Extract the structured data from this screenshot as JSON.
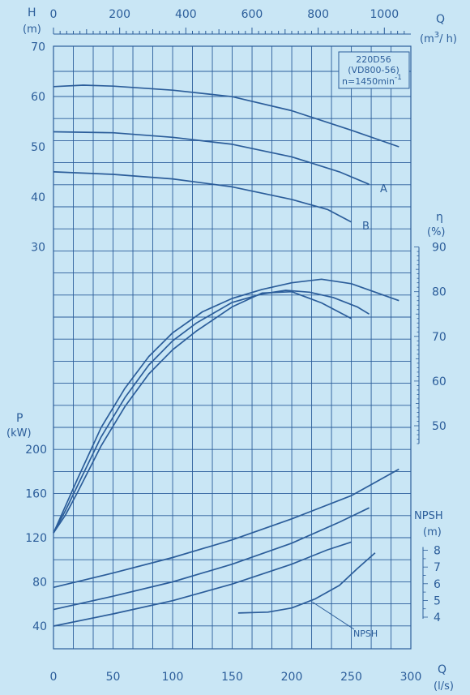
{
  "chart_data": {
    "type": "line",
    "model_box": {
      "line1": "220D56",
      "line2": "(VD800-56)",
      "line3": "n=1450min",
      "line3_sup": "-1"
    },
    "axes": {
      "q_top": {
        "letter": "Q",
        "unit_pre": "(m",
        "unit_sup": "3",
        "unit_post": "/ h)",
        "ticks": [
          0,
          200,
          400,
          600,
          800,
          1000
        ]
      },
      "q_bottom": {
        "letter": "Q",
        "unit": "(l/s)",
        "ticks": [
          0,
          50,
          100,
          150,
          200,
          250,
          300
        ]
      },
      "h": {
        "letter": "H",
        "unit": "(m)",
        "ticks": [
          30,
          40,
          50,
          60,
          70
        ]
      },
      "eta": {
        "letter": "η",
        "unit": "(%)",
        "ticks": [
          50,
          60,
          70,
          80,
          90
        ]
      },
      "p": {
        "letter": "P",
        "unit": "(kW)",
        "ticks": [
          40,
          80,
          120,
          160,
          200
        ]
      },
      "npsh": {
        "letter": "NPSH",
        "unit": "(m)",
        "ticks": [
          4,
          5,
          6,
          7,
          8
        ]
      }
    },
    "labels": {
      "curve_a": "A",
      "curve_b": "B",
      "npsh_note": "NPSH"
    },
    "series": {
      "head": [
        {
          "x": [
            0,
            25,
            50,
            100,
            150,
            200,
            250,
            290
          ],
          "y": [
            62,
            62.3,
            62.1,
            61.3,
            60,
            57.2,
            53.3,
            50
          ]
        },
        {
          "x": [
            0,
            50,
            100,
            150,
            200,
            240,
            265
          ],
          "y": [
            53,
            52.8,
            51.9,
            50.5,
            48,
            45,
            42.5
          ]
        },
        {
          "x": [
            0,
            50,
            100,
            150,
            200,
            230,
            250
          ],
          "y": [
            45,
            44.5,
            43.6,
            42,
            39.5,
            37.5,
            35
          ]
        }
      ],
      "efficiency": [
        {
          "x": [
            0,
            10,
            20,
            40,
            60,
            80,
            100,
            125,
            150,
            175,
            200,
            225,
            250,
            290
          ],
          "y": [
            26,
            32,
            38,
            49.6,
            58.4,
            65.5,
            70.8,
            75.5,
            78.5,
            80.5,
            82,
            82.8,
            81.8,
            78
          ]
        },
        {
          "x": [
            0,
            10,
            20,
            40,
            60,
            80,
            100,
            120,
            150,
            175,
            195,
            215,
            235,
            255,
            265
          ],
          "y": [
            26,
            31,
            36.5,
            47.5,
            56.3,
            63.6,
            69,
            73,
            77.6,
            79.5,
            80.3,
            79.9,
            78.7,
            76.6,
            75
          ]
        },
        {
          "x": [
            0,
            10,
            20,
            40,
            60,
            80,
            100,
            120,
            150,
            175,
            200,
            225,
            250
          ],
          "y": [
            26,
            30,
            35,
            45.5,
            54.3,
            61.6,
            67,
            71.2,
            76.6,
            79.7,
            80,
            77.5,
            74
          ]
        }
      ],
      "power": [
        {
          "x": [
            0,
            50,
            100,
            150,
            200,
            250,
            290
          ],
          "y": [
            75,
            88,
            102,
            118,
            137,
            158,
            182
          ]
        },
        {
          "x": [
            0,
            50,
            100,
            150,
            200,
            240,
            265
          ],
          "y": [
            55,
            67,
            80,
            96,
            115,
            134,
            147
          ]
        },
        {
          "x": [
            0,
            50,
            100,
            150,
            200,
            230,
            250
          ],
          "y": [
            40,
            51,
            63,
            78,
            96,
            109,
            116
          ]
        }
      ],
      "npsh_required": [
        {
          "x": [
            155,
            180,
            200,
            220,
            240,
            255,
            270
          ],
          "y": [
            4.25,
            4.3,
            4.55,
            5.1,
            5.9,
            6.9,
            7.85
          ]
        }
      ]
    }
  }
}
